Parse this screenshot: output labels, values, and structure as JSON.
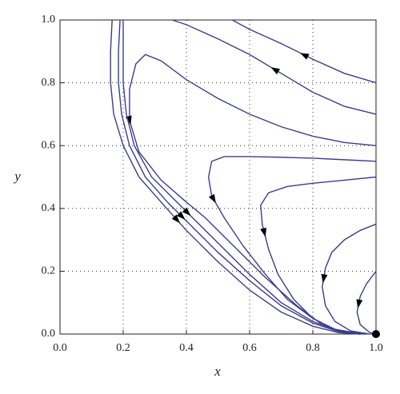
{
  "chart_data": {
    "type": "line",
    "xlabel": "x",
    "ylabel": "y",
    "xlim": [
      0,
      1
    ],
    "ylim": [
      0,
      1
    ],
    "xticks": [
      {
        "value": 0,
        "label": "0.0"
      },
      {
        "value": 0.2,
        "label": "0.2"
      },
      {
        "value": 0.4,
        "label": "0.4"
      },
      {
        "value": 0.6,
        "label": "0.6"
      },
      {
        "value": 0.8,
        "label": "0.8"
      },
      {
        "value": 1,
        "label": "1.0"
      }
    ],
    "yticks": [
      {
        "value": 0,
        "label": "0.0"
      },
      {
        "value": 0.2,
        "label": "0.2"
      },
      {
        "value": 0.4,
        "label": "0.4"
      },
      {
        "value": 0.6,
        "label": "0.6"
      },
      {
        "value": 0.8,
        "label": "0.8"
      },
      {
        "value": 1,
        "label": "1.0"
      }
    ],
    "grid": true,
    "series": [
      {
        "color": "#3d3d8f",
        "x": [
          1,
          0.9,
          0.8,
          0.7,
          0.6,
          0.545
        ],
        "values": [
          0.8,
          0.83,
          0.875,
          0.925,
          0.97,
          1.0
        ]
      },
      {
        "color": "#3d3d8f",
        "x": [
          1,
          0.9,
          0.8,
          0.7,
          0.6,
          0.5,
          0.4,
          0.355
        ],
        "values": [
          0.7,
          0.725,
          0.77,
          0.83,
          0.89,
          0.94,
          0.985,
          1.0
        ]
      },
      {
        "color": "#3d3d8f",
        "x": [
          1,
          0.9,
          0.8,
          0.7,
          0.6,
          0.5,
          0.4,
          0.32,
          0.27,
          0.24,
          0.22,
          0.22,
          0.25,
          0.32,
          0.4,
          0.46,
          0.55,
          0.65,
          0.75,
          0.83,
          0.9,
          0.95
        ],
        "values": [
          0.6,
          0.61,
          0.63,
          0.66,
          0.7,
          0.75,
          0.81,
          0.87,
          0.89,
          0.86,
          0.78,
          0.68,
          0.58,
          0.49,
          0.42,
          0.37,
          0.28,
          0.18,
          0.09,
          0.03,
          0.005,
          0
        ]
      },
      {
        "color": "#3d3d8f",
        "x": [
          1,
          0.9,
          0.8,
          0.7,
          0.6,
          0.52,
          0.48,
          0.47,
          0.48,
          0.52,
          0.58,
          0.65,
          0.72,
          0.8,
          0.87,
          0.95
        ],
        "values": [
          0.55,
          0.555,
          0.56,
          0.563,
          0.565,
          0.565,
          0.55,
          0.5,
          0.44,
          0.37,
          0.28,
          0.19,
          0.11,
          0.05,
          0.015,
          0
        ]
      },
      {
        "color": "#3d3d8f",
        "x": [
          1,
          0.9,
          0.8,
          0.72,
          0.66,
          0.635,
          0.64,
          0.66,
          0.69,
          0.74,
          0.8,
          0.87,
          0.96
        ],
        "values": [
          0.5,
          0.49,
          0.48,
          0.47,
          0.45,
          0.41,
          0.35,
          0.27,
          0.19,
          0.11,
          0.05,
          0.015,
          0
        ]
      },
      {
        "color": "#3d3d8f",
        "x": [
          1,
          0.95,
          0.9,
          0.86,
          0.84,
          0.83,
          0.84,
          0.87,
          0.92,
          0.98
        ],
        "values": [
          0.35,
          0.33,
          0.3,
          0.26,
          0.21,
          0.15,
          0.09,
          0.04,
          0.01,
          0
        ]
      },
      {
        "color": "#3d3d8f",
        "x": [
          1,
          0.97,
          0.95,
          0.94,
          0.95,
          0.98,
          1
        ],
        "values": [
          0.2,
          0.16,
          0.12,
          0.07,
          0.03,
          0.005,
          0
        ]
      },
      {
        "color": "#3d3d8f",
        "x": [
          0.165,
          0.16,
          0.16,
          0.17,
          0.2,
          0.25,
          0.32,
          0.4,
          0.5,
          0.6,
          0.7,
          0.8,
          0.88,
          0.95
        ],
        "values": [
          1.0,
          0.9,
          0.8,
          0.7,
          0.6,
          0.5,
          0.42,
          0.33,
          0.23,
          0.14,
          0.07,
          0.025,
          0.005,
          0
        ]
      },
      {
        "color": "#3d3d8f",
        "x": [
          0.19,
          0.185,
          0.185,
          0.195,
          0.22,
          0.27,
          0.34,
          0.4,
          0.5,
          0.6,
          0.7,
          0.8,
          0.88,
          0.95
        ],
        "values": [
          1.0,
          0.9,
          0.8,
          0.7,
          0.6,
          0.5,
          0.42,
          0.36,
          0.26,
          0.17,
          0.09,
          0.035,
          0.008,
          0
        ]
      },
      {
        "color": "#3d3d8f",
        "x": [
          0.2,
          0.2,
          0.2,
          0.21,
          0.235,
          0.29,
          0.36,
          0.42,
          0.5,
          0.6,
          0.7,
          0.8,
          0.88,
          0.95
        ],
        "values": [
          1.0,
          0.9,
          0.8,
          0.7,
          0.6,
          0.5,
          0.43,
          0.37,
          0.29,
          0.19,
          0.1,
          0.04,
          0.01,
          0
        ]
      }
    ],
    "markers": [
      {
        "x": 1,
        "y": 0,
        "color": "#000000"
      }
    ]
  }
}
